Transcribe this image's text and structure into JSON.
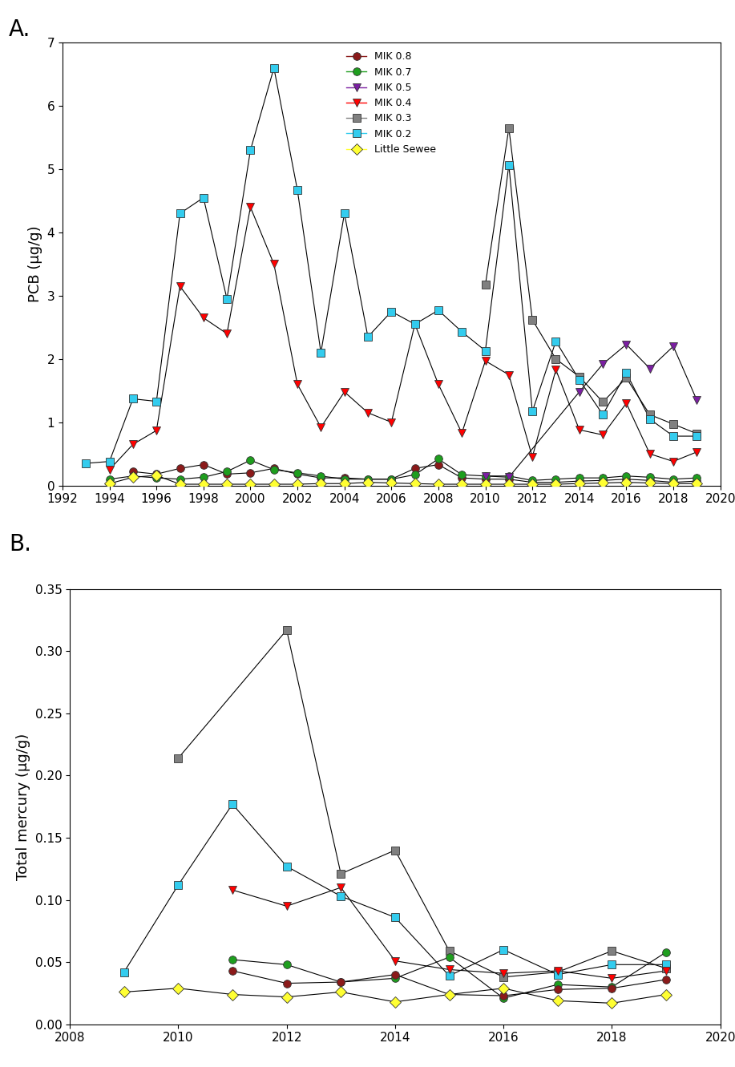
{
  "chart_data": [
    {
      "type": "line",
      "title": "A.",
      "y_label": "PCB (µg/g)",
      "xlim": [
        1992,
        2020
      ],
      "xticks": [
        1992,
        1994,
        1996,
        1998,
        2000,
        2002,
        2004,
        2006,
        2008,
        2010,
        2012,
        2014,
        2016,
        2018,
        2020
      ],
      "ylim": [
        0,
        7
      ],
      "yticks": [
        0,
        1,
        2,
        3,
        4,
        5,
        6,
        7
      ],
      "legend": "upper center",
      "series": [
        {
          "name": "MIK 0.8",
          "color": "#8b1a1a",
          "marker": "circle",
          "x": [
            1995,
            1996,
            1997,
            1998,
            1999,
            2000,
            2001,
            2002,
            2003,
            2004,
            2005,
            2006,
            2007,
            2008,
            2009,
            2010,
            2011,
            2012,
            2013,
            2014,
            2015,
            2016,
            2017,
            2018,
            2019
          ],
          "values": [
            0.22,
            0.18,
            0.27,
            0.33,
            0.18,
            0.2,
            0.27,
            0.18,
            0.12,
            0.12,
            0.1,
            0.1,
            0.27,
            0.33,
            0.12,
            0.1,
            0.1,
            0.05,
            0.05,
            0.07,
            0.08,
            0.1,
            0.08,
            0.05,
            0.07
          ]
        },
        {
          "name": "MIK 0.7",
          "color": "#1e9e1e",
          "marker": "circle",
          "x": [
            1994,
            1995,
            1996,
            1997,
            1998,
            1999,
            2000,
            2001,
            2002,
            2003,
            2004,
            2005,
            2006,
            2007,
            2008,
            2009,
            2010,
            2011,
            2012,
            2013,
            2014,
            2015,
            2016,
            2017,
            2018,
            2019
          ],
          "values": [
            0.1,
            0.15,
            0.12,
            0.1,
            0.13,
            0.22,
            0.4,
            0.25,
            0.2,
            0.15,
            0.1,
            0.1,
            0.1,
            0.17,
            0.42,
            0.17,
            0.15,
            0.15,
            0.08,
            0.1,
            0.12,
            0.12,
            0.15,
            0.13,
            0.1,
            0.12
          ]
        },
        {
          "name": "MIK 0.5",
          "color": "#7b1fa2",
          "marker": "triangle_down",
          "x": [
            2010,
            2011,
            2014,
            2015,
            2016,
            2017,
            2018,
            2019
          ],
          "values": [
            0.15,
            0.13,
            1.48,
            1.92,
            2.23,
            1.85,
            2.2,
            1.35
          ]
        },
        {
          "name": "MIK 0.4",
          "color": "#ff0000",
          "marker": "triangle_down",
          "x": [
            1994,
            1995,
            1996,
            1997,
            1998,
            1999,
            2000,
            2001,
            2002,
            2003,
            2004,
            2005,
            2006,
            2007,
            2008,
            2009,
            2010,
            2011,
            2012,
            2013,
            2014,
            2015,
            2016,
            2017,
            2018,
            2019
          ],
          "values": [
            0.25,
            0.65,
            0.87,
            3.15,
            2.65,
            2.4,
            4.4,
            3.5,
            1.6,
            0.92,
            1.48,
            1.15,
            1.0,
            2.55,
            1.6,
            0.83,
            1.97,
            1.75,
            0.45,
            1.83,
            0.88,
            0.8,
            1.3,
            0.5,
            0.38,
            0.53
          ]
        },
        {
          "name": "MIK 0.3",
          "color": "#808080",
          "marker": "square",
          "x": [
            2010,
            2011,
            2012,
            2013,
            2014,
            2015,
            2016,
            2017,
            2018,
            2019
          ],
          "values": [
            3.17,
            5.65,
            2.62,
            2.0,
            1.72,
            1.32,
            1.7,
            1.12,
            0.97,
            0.82
          ]
        },
        {
          "name": "MIK 0.2",
          "color": "#33ccee",
          "marker": "square",
          "x": [
            1993,
            1994,
            1995,
            1996,
            1997,
            1998,
            1999,
            2000,
            2001,
            2002,
            2003,
            2004,
            2005,
            2006,
            2007,
            2008,
            2009,
            2010,
            2011,
            2012,
            2013,
            2014,
            2015,
            2016,
            2017,
            2018,
            2019
          ],
          "values": [
            0.35,
            0.38,
            1.37,
            1.33,
            4.3,
            4.55,
            2.95,
            5.3,
            6.6,
            4.67,
            2.1,
            4.3,
            2.35,
            2.75,
            2.55,
            2.77,
            2.43,
            2.13,
            5.07,
            1.17,
            2.28,
            1.67,
            1.12,
            1.78,
            1.05,
            0.78,
            0.78
          ]
        },
        {
          "name": "Little Sewee",
          "color": "#ffff33",
          "marker": "diamond",
          "x": [
            1994,
            1995,
            1996,
            1997,
            1998,
            1999,
            2000,
            2001,
            2002,
            2003,
            2004,
            2005,
            2006,
            2007,
            2008,
            2009,
            2010,
            2011,
            2012,
            2013,
            2014,
            2015,
            2016,
            2017,
            2018,
            2019
          ],
          "values": [
            0.03,
            0.13,
            0.16,
            0.02,
            0.02,
            0.02,
            0.02,
            0.02,
            0.02,
            0.03,
            0.03,
            0.05,
            0.04,
            0.03,
            0.02,
            0.02,
            0.02,
            0.02,
            0.02,
            0.02,
            0.03,
            0.04,
            0.05,
            0.04,
            0.03,
            0.03
          ]
        }
      ]
    },
    {
      "type": "line",
      "title": "B.",
      "y_label": "Total mercury (µg/g)",
      "xlim": [
        2008,
        2020
      ],
      "xticks": [
        2008,
        2010,
        2012,
        2014,
        2016,
        2018,
        2020
      ],
      "ylim": [
        0,
        0.35
      ],
      "yticks": [
        {
          "value": 0,
          "label": "0.00"
        },
        {
          "value": 0.05,
          "label": "0.05"
        },
        {
          "value": 0.1,
          "label": "0.10"
        },
        {
          "value": 0.15,
          "label": "0.15"
        },
        {
          "value": 0.2,
          "label": "0.20"
        },
        {
          "value": 0.25,
          "label": "0.25"
        },
        {
          "value": 0.3,
          "label": "0.30"
        },
        {
          "value": 0.35,
          "label": "0.35"
        }
      ],
      "series": [
        {
          "color": "#808080",
          "marker": "square",
          "x": [
            2010,
            2012,
            2013,
            2014,
            2015,
            2016,
            2017,
            2018,
            2019
          ],
          "values": [
            0.214,
            0.317,
            0.121,
            0.14,
            0.059,
            0.038,
            0.042,
            0.059,
            0.045
          ]
        },
        {
          "color": "#33ccee",
          "marker": "square",
          "x": [
            2009,
            2010,
            2011,
            2012,
            2013,
            2014,
            2015,
            2016,
            2017,
            2018,
            2019
          ],
          "values": [
            0.042,
            0.112,
            0.177,
            0.127,
            0.103,
            0.086,
            0.039,
            0.06,
            0.04,
            0.048,
            0.048
          ]
        },
        {
          "color": "#ff0000",
          "marker": "triangle_down",
          "x": [
            2011,
            2012,
            2013,
            2014,
            2015,
            2016,
            2017,
            2018,
            2019
          ],
          "values": [
            0.108,
            0.095,
            0.11,
            0.051,
            0.044,
            0.041,
            0.043,
            0.037,
            0.043
          ]
        },
        {
          "color": "#1e9e1e",
          "marker": "circle",
          "x": [
            2011,
            2012,
            2013,
            2014,
            2015,
            2016,
            2017,
            2018,
            2019
          ],
          "values": [
            0.052,
            0.048,
            0.034,
            0.037,
            0.054,
            0.021,
            0.032,
            0.03,
            0.058
          ]
        },
        {
          "color": "#8b1a1a",
          "marker": "circle",
          "x": [
            2011,
            2012,
            2013,
            2014,
            2015,
            2016,
            2017,
            2018,
            2019
          ],
          "values": [
            0.043,
            0.033,
            0.034,
            0.04,
            0.024,
            0.023,
            0.028,
            0.029,
            0.036
          ]
        },
        {
          "color": "#ffff33",
          "marker": "diamond",
          "x": [
            2009,
            2010,
            2011,
            2012,
            2013,
            2014,
            2015,
            2016,
            2017,
            2018,
            2019
          ],
          "values": [
            0.026,
            0.029,
            0.024,
            0.022,
            0.026,
            0.018,
            0.024,
            0.029,
            0.019,
            0.017,
            0.024
          ]
        }
      ]
    }
  ]
}
